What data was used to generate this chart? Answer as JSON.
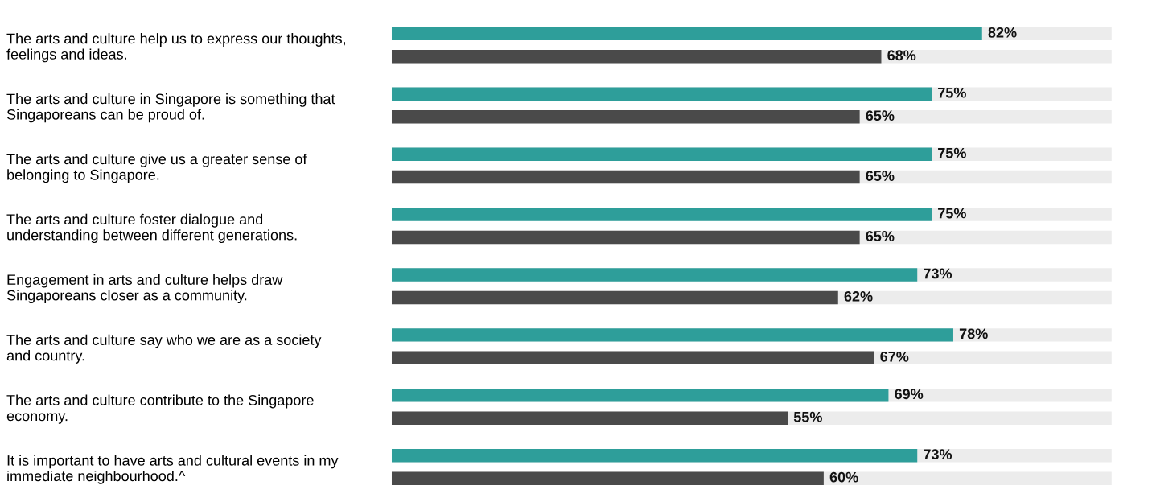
{
  "chart_data": {
    "type": "bar",
    "orientation": "horizontal",
    "categories": [
      "The arts and culture help us to express our thoughts,\nfeelings and ideas.",
      "The arts and culture in Singapore is something that\nSingaporeans can be proud of.",
      "The arts and culture give us a greater sense of\nbelonging to Singapore.",
      "The arts and culture foster dialogue and\nunderstanding between different generations.",
      "Engagement in arts and culture helps draw\nSingaporeans closer as a community.",
      "The arts and culture say who we are as a society\nand country.",
      "The arts and culture contribute to the Singapore\neconomy.",
      "It is important to have arts and cultural events in my\nimmediate neighbourhood.^"
    ],
    "series": [
      {
        "color": "#2e9e9a",
        "values": [
          82,
          75,
          75,
          75,
          73,
          78,
          69,
          73
        ],
        "value_labels": [
          "82%",
          "75%",
          "75%",
          "75%",
          "73%",
          "78%",
          "69%",
          "73%"
        ]
      },
      {
        "color": "#4a4a4a",
        "values": [
          68,
          65,
          65,
          65,
          62,
          67,
          55,
          60
        ],
        "value_labels": [
          "68%",
          "65%",
          "65%",
          "65%",
          "62%",
          "67%",
          "55%",
          "60%"
        ]
      }
    ],
    "xlim": [
      0,
      100
    ],
    "tick_labels": "y",
    "grid": false,
    "legend": false
  }
}
